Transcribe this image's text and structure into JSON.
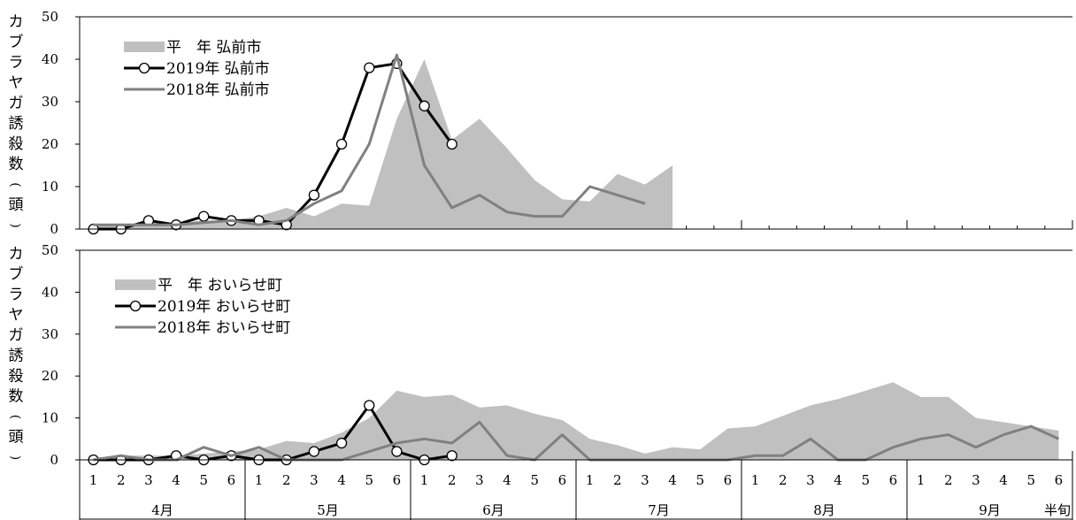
{
  "chart_data": [
    {
      "type": "line",
      "ylabel": "カブラヤガ誘殺数(頭)",
      "ylim": [
        0,
        50
      ],
      "yticks": [
        0,
        10,
        20,
        30,
        40,
        50
      ],
      "legend_position": "top-left",
      "x_axis": {
        "half_month_ticks": [
          "1",
          "2",
          "3",
          "4",
          "5",
          "6",
          "1",
          "2",
          "3",
          "4",
          "5",
          "6",
          "1",
          "2",
          "3",
          "4",
          "5",
          "6",
          "1",
          "2",
          "3",
          "4",
          "5",
          "6",
          "1",
          "2",
          "3",
          "4",
          "5",
          "6",
          "1",
          "2",
          "3",
          "4",
          "5",
          "6"
        ],
        "months": [
          "4月",
          "5月",
          "6月",
          "7月",
          "8月",
          "9月"
        ],
        "unit_label": "半旬"
      },
      "series": [
        {
          "name": "平　年 弘前市",
          "style": "area",
          "color": "#c0c0c0",
          "values": [
            1,
            1,
            1.5,
            1.5,
            2,
            2,
            3,
            5,
            3,
            6,
            5.5,
            26,
            40,
            21,
            26,
            19,
            11.5,
            7,
            6.5,
            13,
            10.5,
            15
          ]
        },
        {
          "name": "2019年 弘前市",
          "style": "line-marker",
          "color": "#000000",
          "values": [
            0,
            0,
            2,
            1,
            3,
            2,
            2,
            1,
            8,
            20,
            38,
            39,
            29,
            20
          ]
        },
        {
          "name": "2018年 弘前市",
          "style": "line",
          "color": "#808080",
          "values": [
            1,
            1,
            1,
            1,
            1.5,
            2,
            1,
            2,
            6,
            9,
            20,
            41,
            15,
            5,
            8,
            4,
            3,
            3,
            10,
            8,
            6
          ]
        }
      ]
    },
    {
      "type": "line",
      "ylabel": "カブラヤガ誘殺数(頭)",
      "ylim": [
        0,
        50
      ],
      "yticks": [
        0,
        10,
        20,
        30,
        40,
        50
      ],
      "legend_position": "top-left",
      "series": [
        {
          "name": "平　年 おいらせ町",
          "style": "area",
          "color": "#c0c0c0",
          "values": [
            0.5,
            1,
            1,
            1,
            1.5,
            2,
            2.5,
            4.5,
            4,
            6.5,
            10,
            16.5,
            15,
            15.5,
            12.5,
            13,
            11,
            9.5,
            5,
            3.5,
            1.5,
            3,
            2.5,
            7.5,
            8,
            10.5,
            13,
            14.5,
            16.5,
            18.5,
            15,
            15,
            10,
            9,
            8,
            7
          ]
        },
        {
          "name": "2019年 おいらせ町",
          "style": "line-marker",
          "color": "#000000",
          "values": [
            0,
            0,
            0,
            1,
            0,
            1,
            0,
            0,
            2,
            4,
            13,
            2,
            0,
            1
          ]
        },
        {
          "name": "2018年 おいらせ町",
          "style": "line",
          "color": "#808080",
          "values": [
            0,
            1,
            0,
            0,
            3,
            1,
            3,
            0,
            0,
            0,
            2,
            4,
            5,
            4,
            9,
            1,
            0,
            6,
            0,
            0,
            0,
            0,
            0,
            0,
            1,
            1,
            5,
            0,
            0,
            3,
            5,
            6,
            3,
            6,
            8,
            5
          ]
        }
      ]
    }
  ]
}
